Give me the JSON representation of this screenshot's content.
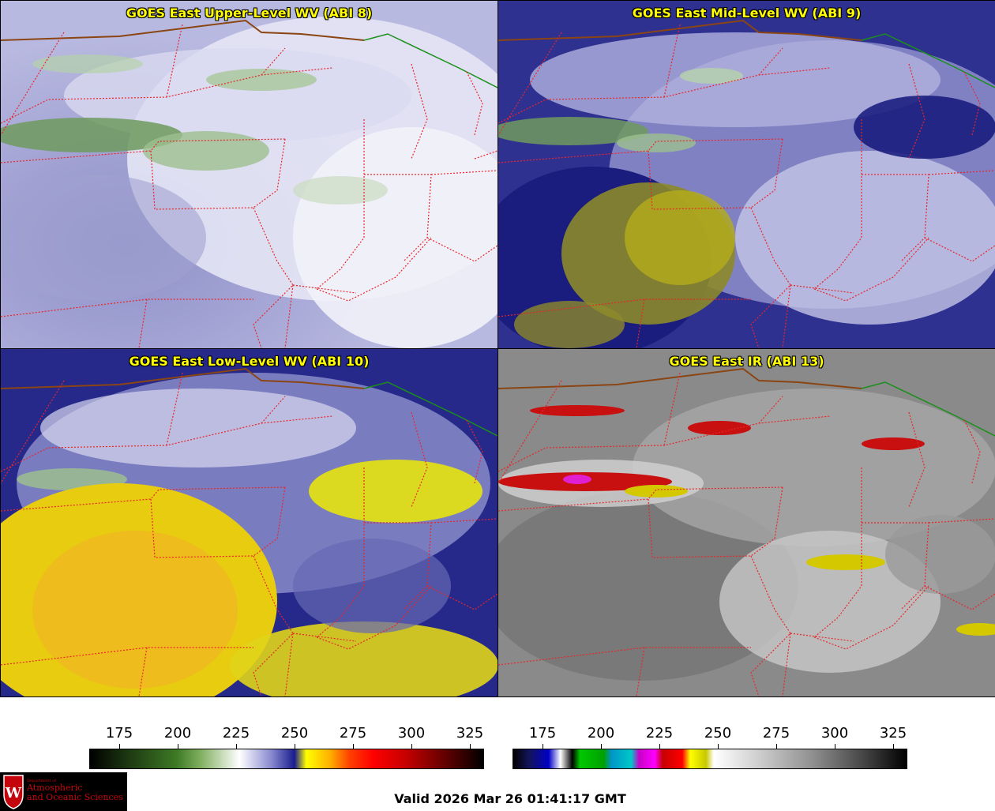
{
  "panels": [
    {
      "title": "GOES East Upper-Level WV (ABI 8)",
      "palette": "wv-upper"
    },
    {
      "title": "GOES East Mid-Level WV (ABI 9)",
      "palette": "wv-mid"
    },
    {
      "title": "GOES East Low-Level WV (ABI 10)",
      "palette": "wv-low"
    },
    {
      "title": "GOES East IR (ABI 13)",
      "palette": "ir"
    }
  ],
  "colorbars": [
    {
      "name": "water-vapor",
      "ticks": [
        "175",
        "200",
        "225",
        "250",
        "275",
        "300",
        "325"
      ]
    },
    {
      "name": "infrared",
      "ticks": [
        "175",
        "200",
        "225",
        "250",
        "275",
        "300",
        "325"
      ]
    }
  ],
  "logo": {
    "line1": "Department of",
    "line2": "Atmospheric",
    "line3": "and Oceanic Sciences",
    "mark": "W"
  },
  "valid_time": "Valid 2026 Mar 26 01:41:17 GMT",
  "colors": {
    "state_border": "#e8262a",
    "canada_border": "#8b4513",
    "lake_border": "#1a8f1a",
    "title_text": "#ffff00"
  }
}
